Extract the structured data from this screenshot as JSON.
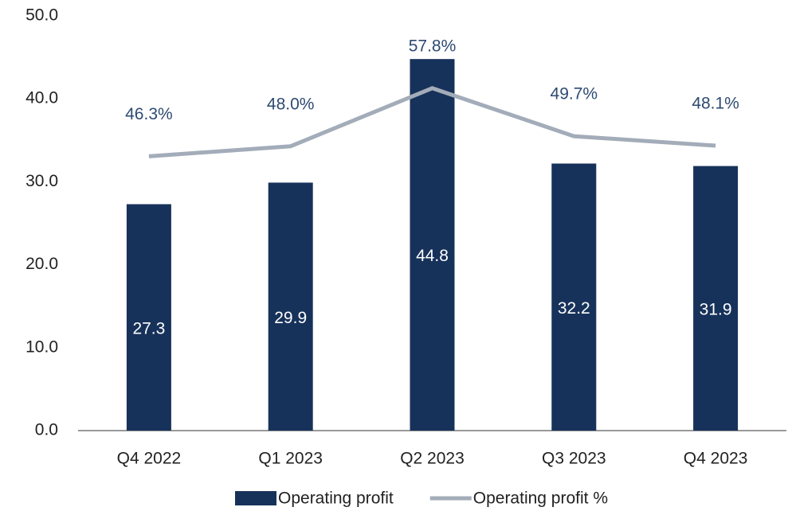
{
  "chart_data": {
    "type": "bar",
    "categories": [
      "Q4 2022",
      "Q1 2023",
      "Q2 2023",
      "Q3 2023",
      "Q4 2023"
    ],
    "series": [
      {
        "name": "Operating profit",
        "type": "bar",
        "color": "#17325a",
        "values": [
          27.3,
          29.9,
          44.8,
          32.2,
          31.9
        ]
      },
      {
        "name": "Operating profit %",
        "type": "line",
        "axis": "y2",
        "color": "#a3acb9",
        "values": [
          46.3,
          48.0,
          57.8,
          49.7,
          48.1
        ],
        "value_labels": [
          "46.3%",
          "48.0%",
          "57.8%",
          "49.7%",
          "48.1%"
        ]
      }
    ],
    "ylim": [
      0,
      50
    ],
    "yticks": [
      {
        "value": 0,
        "label": "0.0"
      },
      {
        "value": 10,
        "label": "10.0"
      },
      {
        "value": 20,
        "label": "20.0"
      },
      {
        "value": 30,
        "label": "30.0"
      },
      {
        "value": 40,
        "label": "40.0"
      },
      {
        "value": 50,
        "label": "50.0"
      }
    ],
    "y2lim": [
      0,
      70
    ],
    "legend": "bottom"
  }
}
